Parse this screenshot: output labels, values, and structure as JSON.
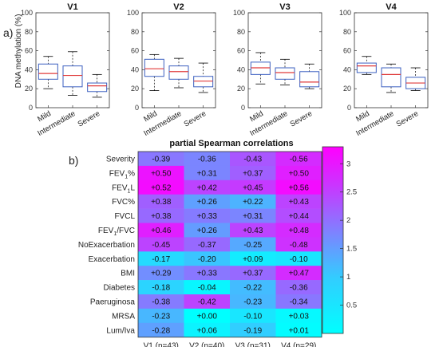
{
  "panel_a_label": "a)",
  "panel_b_label": "b)",
  "chart_data": [
    {
      "type": "boxplot",
      "panel": "a",
      "ylabel": "DNA methylation (%)",
      "ylim": [
        0,
        100
      ],
      "yticks": [
        0,
        20,
        40,
        60,
        80,
        100
      ],
      "categories": [
        "Mild",
        "Intermediate",
        "Severe"
      ],
      "grid": false,
      "subplots": [
        {
          "title": "V1",
          "boxes": [
            {
              "category": "Mild",
              "min": 20,
              "q1": 30,
              "median": 36,
              "q3": 46,
              "max": 54
            },
            {
              "category": "Intermediate",
              "min": 13,
              "q1": 22,
              "median": 34,
              "q3": 44,
              "max": 59
            },
            {
              "category": "Severe",
              "min": 11,
              "q1": 17,
              "median": 23,
              "q3": 26,
              "max": 35
            }
          ]
        },
        {
          "title": "V2",
          "boxes": [
            {
              "category": "Mild",
              "min": 18,
              "q1": 33,
              "median": 41,
              "q3": 51,
              "max": 56
            },
            {
              "category": "Intermediate",
              "min": 21,
              "q1": 30,
              "median": 38,
              "q3": 44,
              "max": 52
            },
            {
              "category": "Severe",
              "min": 16,
              "q1": 22,
              "median": 28,
              "q3": 33,
              "max": 47
            }
          ]
        },
        {
          "title": "V3",
          "boxes": [
            {
              "category": "Mild",
              "min": 25,
              "q1": 35,
              "median": 42,
              "q3": 48,
              "max": 58
            },
            {
              "category": "Intermediate",
              "min": 24,
              "q1": 30,
              "median": 37,
              "q3": 42,
              "max": 51
            },
            {
              "category": "Severe",
              "min": 20,
              "q1": 22,
              "median": 27,
              "q3": 38,
              "max": 46
            }
          ]
        },
        {
          "title": "V4",
          "boxes": [
            {
              "category": "Mild",
              "min": 35,
              "q1": 37,
              "median": 44,
              "q3": 47,
              "max": 54
            },
            {
              "category": "Intermediate",
              "min": 16,
              "q1": 22,
              "median": 35,
              "q3": 42,
              "max": 46
            },
            {
              "category": "Severe",
              "min": 18,
              "q1": 20,
              "median": 26,
              "q3": 32,
              "max": 42
            }
          ]
        }
      ]
    },
    {
      "type": "heatmap",
      "panel": "b",
      "title": "partial Spearman correlations",
      "rows": [
        "Severity",
        "FEV1%",
        "FEV1L",
        "FVC%",
        "FVCL",
        "FEV1/FVC",
        "NoExacerbation",
        "Exacerbation",
        "BMI",
        "Diabetes",
        "Paeruginosa",
        "MRSA",
        "Lum/Iva"
      ],
      "row_labels": [
        {
          "pre": "Severity"
        },
        {
          "pre": "FEV",
          "sub": "1",
          "post": "%"
        },
        {
          "pre": "FEV",
          "sub": "1",
          "post": "L"
        },
        {
          "pre": "FVC%"
        },
        {
          "pre": "FVCL"
        },
        {
          "pre": "FEV",
          "sub": "1",
          "post": "/FVC"
        },
        {
          "pre": "NoExacerbation"
        },
        {
          "pre": "Exacerbation"
        },
        {
          "pre": "BMI"
        },
        {
          "pre": "Diabetes"
        },
        {
          "pre": "Paeruginosa"
        },
        {
          "pre": "MRSA"
        },
        {
          "pre": "Lum/Iva"
        }
      ],
      "columns": [
        "V1 (n=43)",
        "V2 (n=40)",
        "V3 (n=31)",
        "V4 (n=29)"
      ],
      "values": [
        [
          "-0.39",
          "-0.36",
          "-0.43",
          "-0.56"
        ],
        [
          "+0.50",
          "+0.31",
          "+0.37",
          "+0.50"
        ],
        [
          "+0.52",
          "+0.42",
          "+0.45",
          "+0.56"
        ],
        [
          "+0.38",
          "+0.26",
          "+0.22",
          "+0.43"
        ],
        [
          "+0.38",
          "+0.33",
          "+0.31",
          "+0.44"
        ],
        [
          "+0.46",
          "+0.26",
          "+0.43",
          "+0.48"
        ],
        [
          "-0.45",
          "-0.37",
          "-0.25",
          "-0.48"
        ],
        [
          "-0.17",
          "-0.20",
          "+0.09",
          "-0.10"
        ],
        [
          "+0.29",
          "+0.33",
          "+0.37",
          "+0.47"
        ],
        [
          "-0.18",
          "-0.04",
          "-0.22",
          "-0.36"
        ],
        [
          "-0.38",
          "-0.42",
          "-0.23",
          "-0.34"
        ],
        [
          "-0.23",
          "+0.00",
          "-0.10",
          "+0.03"
        ],
        [
          "-0.28",
          "+0.06",
          "-0.19",
          "+0.01"
        ]
      ],
      "cell_scores": [
        [
          1.75,
          1.6,
          2.1,
          2.6
        ],
        [
          3.0,
          1.6,
          2.0,
          2.8
        ],
        [
          3.1,
          2.3,
          2.4,
          3.1
        ],
        [
          2.0,
          1.3,
          1.1,
          2.3
        ],
        [
          1.9,
          1.7,
          1.6,
          2.2
        ],
        [
          2.8,
          1.35,
          2.3,
          2.6
        ],
        [
          2.3,
          1.9,
          1.2,
          2.5
        ],
        [
          0.6,
          0.9,
          0.3,
          0.4
        ],
        [
          1.5,
          1.75,
          1.9,
          2.6
        ],
        [
          0.7,
          0.15,
          1.0,
          1.9
        ],
        [
          1.7,
          2.3,
          1.05,
          1.75
        ],
        [
          1.05,
          0.0,
          0.4,
          0.1
        ],
        [
          1.3,
          0.2,
          0.8,
          0.05
        ]
      ],
      "colorbar": {
        "range": [
          0,
          3.3
        ],
        "ticks": [
          "0.5",
          "1",
          "1.5",
          "2",
          "2.5",
          "3"
        ],
        "tick_values": [
          0.5,
          1,
          1.5,
          2,
          2.5,
          3
        ],
        "colors": [
          "#00ffff",
          "#33ccff",
          "#8080ff",
          "#cc33ff",
          "#ff00ff"
        ]
      }
    }
  ]
}
